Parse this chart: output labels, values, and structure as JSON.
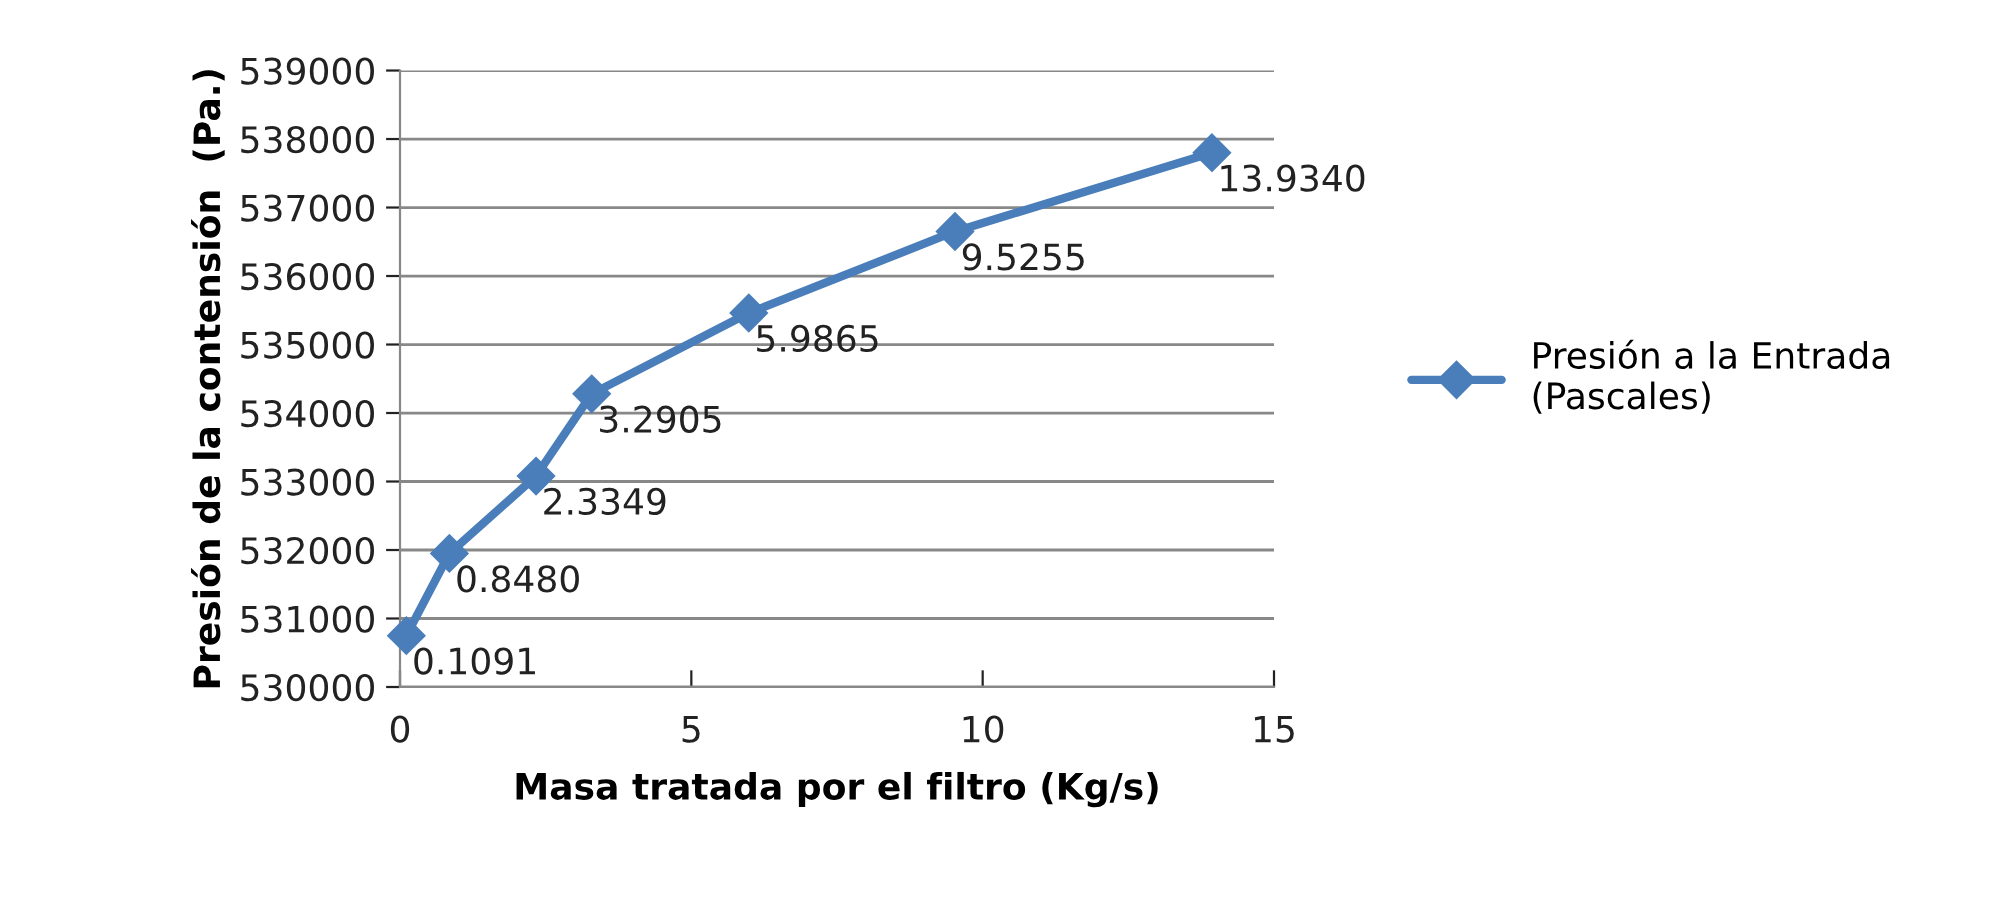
{
  "chart_data": {
    "type": "line",
    "xlabel": "Masa tratada por el filtro (Kg/s)",
    "ylabel": "Presión de la contensión  (Pa.)",
    "x": [
      0.1091,
      0.848,
      2.3349,
      3.2905,
      5.9865,
      9.5255,
      13.934
    ],
    "series": [
      {
        "name": "Presión a la Entrada\n(Pascales)",
        "color": "#4a7ebb",
        "values": [
          530750,
          531950,
          533080,
          534280,
          535460,
          536650,
          537800
        ]
      }
    ],
    "annotations": [
      {
        "text": "0.1091",
        "x": 0.1091,
        "y": 530750
      },
      {
        "text": "0.8480",
        "x": 0.848,
        "y": 531950
      },
      {
        "text": "2.3349",
        "x": 2.3349,
        "y": 533080
      },
      {
        "text": "3.2905",
        "x": 3.2905,
        "y": 534280
      },
      {
        "text": "5.9865",
        "x": 5.9865,
        "y": 535460
      },
      {
        "text": "9.5255",
        "x": 9.5255,
        "y": 536650
      },
      {
        "text": "13.9340",
        "x": 13.934,
        "y": 537800
      }
    ],
    "xlim": [
      0,
      15
    ],
    "xticks": [
      0,
      5,
      10,
      15
    ],
    "ylim": [
      530000,
      539000
    ],
    "yticks": [
      530000,
      531000,
      532000,
      533000,
      534000,
      535000,
      536000,
      537000,
      538000,
      539000
    ],
    "grid": "y",
    "legend": "right",
    "marker": "diamond",
    "line_style": "solid"
  }
}
